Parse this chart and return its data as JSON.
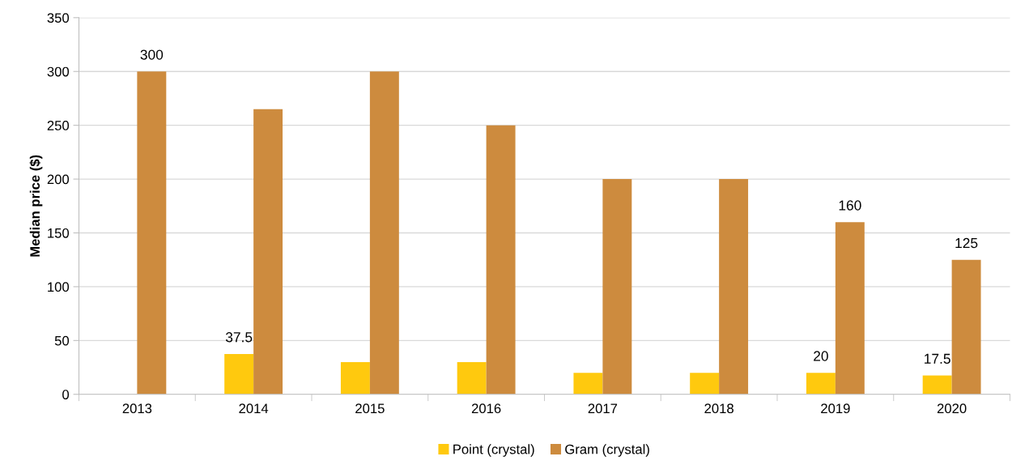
{
  "chart_data": {
    "type": "bar",
    "ylabel": "Median price ($)",
    "categories": [
      "2013",
      "2014",
      "2015",
      "2016",
      "2017",
      "2018",
      "2019",
      "2020"
    ],
    "series": [
      {
        "name": "Point (crystal)",
        "color": "#ffc90e",
        "values": [
          null,
          37.5,
          30,
          30,
          20,
          20,
          20,
          17.5
        ],
        "value_labels": [
          null,
          "37.5",
          null,
          null,
          null,
          null,
          "20",
          "17.5"
        ]
      },
      {
        "name": "Gram (crystal)",
        "color": "#cd8b3e",
        "values": [
          300,
          265,
          300,
          250,
          200,
          200,
          160,
          125
        ],
        "value_labels": [
          "300",
          null,
          null,
          null,
          null,
          null,
          "160",
          "125"
        ]
      }
    ],
    "ylim": [
      0,
      350
    ],
    "yticks": [
      0,
      50,
      100,
      150,
      200,
      250,
      300,
      350
    ],
    "grid": "y",
    "legend": "bottom"
  }
}
